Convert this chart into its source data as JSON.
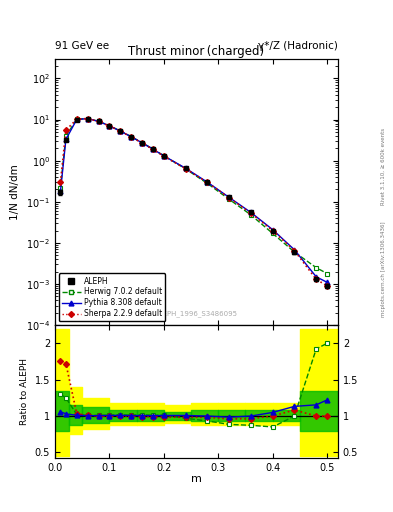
{
  "title_left": "91 GeV ee",
  "title_right": "γ*/Z (Hadronic)",
  "plot_title": "Thrust minor (charged)",
  "ylabel_main": "1/N dN/dm",
  "ylabel_ratio": "Ratio to ALEPH",
  "xlabel": "m",
  "watermark": "ALEPH_1996_S3486095",
  "rivet_text": "Rivet 3.1.10, ≥ 600k events",
  "arxiv_text": "[arXiv:1306.3436]",
  "mcplots_text": "mcplots.cern.ch",
  "aleph_x": [
    0.01,
    0.02,
    0.04,
    0.06,
    0.08,
    0.1,
    0.12,
    0.14,
    0.16,
    0.18,
    0.2,
    0.24,
    0.28,
    0.32,
    0.36,
    0.4,
    0.44,
    0.48,
    0.5
  ],
  "aleph_y": [
    0.17,
    3.2,
    10.0,
    10.5,
    9.0,
    7.0,
    5.2,
    3.8,
    2.7,
    1.9,
    1.3,
    0.65,
    0.3,
    0.13,
    0.055,
    0.02,
    0.006,
    0.0013,
    0.0009
  ],
  "aleph_yerr": [
    0.02,
    0.15,
    0.3,
    0.3,
    0.25,
    0.2,
    0.15,
    0.1,
    0.08,
    0.06,
    0.04,
    0.02,
    0.01,
    0.005,
    0.002,
    0.001,
    0.0005,
    0.0001,
    0.0001
  ],
  "herwig_x": [
    0.01,
    0.02,
    0.04,
    0.06,
    0.08,
    0.1,
    0.12,
    0.14,
    0.16,
    0.18,
    0.2,
    0.24,
    0.28,
    0.32,
    0.36,
    0.4,
    0.44,
    0.48,
    0.5
  ],
  "herwig_y": [
    0.22,
    4.0,
    10.2,
    10.6,
    9.1,
    7.1,
    5.3,
    3.85,
    2.75,
    1.92,
    1.32,
    0.63,
    0.28,
    0.115,
    0.048,
    0.017,
    0.006,
    0.0025,
    0.0018
  ],
  "pythia_x": [
    0.01,
    0.02,
    0.04,
    0.06,
    0.08,
    0.1,
    0.12,
    0.14,
    0.16,
    0.18,
    0.2,
    0.24,
    0.28,
    0.32,
    0.36,
    0.4,
    0.44,
    0.48,
    0.5
  ],
  "pythia_y": [
    0.18,
    3.3,
    10.1,
    10.55,
    9.05,
    7.05,
    5.25,
    3.82,
    2.72,
    1.91,
    1.31,
    0.655,
    0.3,
    0.128,
    0.055,
    0.021,
    0.0068,
    0.0015,
    0.0011
  ],
  "sherpa_x": [
    0.01,
    0.02,
    0.04,
    0.06,
    0.08,
    0.1,
    0.12,
    0.14,
    0.16,
    0.18,
    0.2,
    0.24,
    0.28,
    0.32,
    0.36,
    0.4,
    0.44,
    0.48,
    0.5
  ],
  "sherpa_y": [
    0.3,
    5.5,
    10.3,
    10.6,
    9.0,
    7.0,
    5.2,
    3.8,
    2.68,
    1.88,
    1.28,
    0.64,
    0.295,
    0.125,
    0.053,
    0.02,
    0.0065,
    0.0013,
    0.0009
  ],
  "herwig_ratio": [
    1.3,
    1.25,
    1.02,
    1.01,
    1.01,
    1.014,
    1.019,
    1.013,
    1.019,
    1.011,
    1.015,
    0.969,
    0.933,
    0.885,
    0.873,
    0.85,
    1.0,
    1.923,
    2.0
  ],
  "pythia_ratio": [
    1.06,
    1.03,
    1.01,
    1.005,
    1.006,
    1.007,
    1.01,
    1.005,
    1.007,
    1.005,
    1.008,
    1.008,
    1.0,
    0.985,
    1.0,
    1.05,
    1.133,
    1.154,
    1.222
  ],
  "sherpa_ratio": [
    1.76,
    1.72,
    1.03,
    1.01,
    1.0,
    1.0,
    1.0,
    1.0,
    0.993,
    0.989,
    0.985,
    0.985,
    0.983,
    0.962,
    0.964,
    1.0,
    1.083,
    1.0,
    1.0
  ],
  "band_x_edges": [
    0.0,
    0.025,
    0.05,
    0.1,
    0.15,
    0.2,
    0.25,
    0.3,
    0.35,
    0.4,
    0.45,
    0.52
  ],
  "band_yellow_lo": [
    0.45,
    0.75,
    0.82,
    0.88,
    0.88,
    0.9,
    0.88,
    0.88,
    0.88,
    0.88,
    0.45,
    0.45
  ],
  "band_yellow_hi": [
    2.2,
    1.4,
    1.25,
    1.18,
    1.18,
    1.15,
    1.18,
    1.18,
    1.18,
    1.18,
    2.2,
    2.2
  ],
  "band_green_lo": [
    0.8,
    0.88,
    0.9,
    0.93,
    0.93,
    0.95,
    0.93,
    0.93,
    0.93,
    0.93,
    0.8,
    0.8
  ],
  "band_green_hi": [
    1.35,
    1.15,
    1.12,
    1.08,
    1.08,
    1.06,
    1.08,
    1.08,
    1.08,
    1.08,
    1.35,
    1.35
  ],
  "color_aleph": "#000000",
  "color_herwig": "#008800",
  "color_pythia": "#0000cc",
  "color_sherpa": "#cc0000",
  "color_band_yellow": "#ffff00",
  "color_band_green": "#00bb00",
  "ylim_main": [
    0.0001,
    300
  ],
  "ylim_ratio": [
    0.42,
    2.25
  ],
  "xlim": [
    0.0,
    0.52
  ],
  "ratio_yticks": [
    0.5,
    1.0,
    1.5,
    2.0
  ],
  "ratio_yticklabels": [
    "0.5",
    "1",
    "1.5",
    "2"
  ],
  "legend_entries": [
    "ALEPH",
    "Herwig 7.0.2 default",
    "Pythia 8.308 default",
    "Sherpa 2.2.9 default"
  ]
}
